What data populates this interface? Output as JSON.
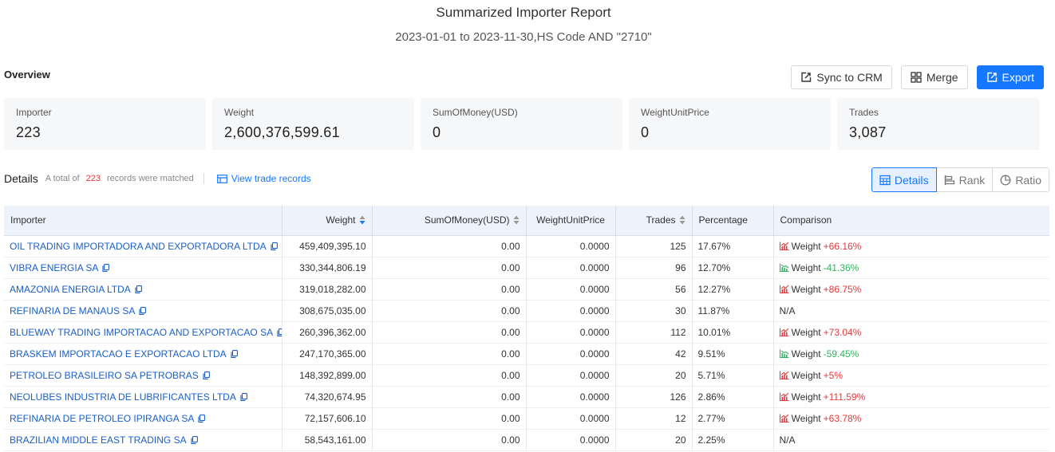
{
  "header": {
    "title": "Summarized Importer Report",
    "subtitle": "2023-01-01 to 2023-11-30,HS Code AND \"2710\""
  },
  "overview_label": "Overview",
  "toolbar": {
    "sync_label": "Sync to CRM",
    "merge_label": "Merge",
    "export_label": "Export"
  },
  "stats": [
    {
      "label": "Importer",
      "value": "223"
    },
    {
      "label": "Weight",
      "value": "2,600,376,599.61"
    },
    {
      "label": "SumOfMoney(USD)",
      "value": "0"
    },
    {
      "label": "WeightUnitPrice",
      "value": "0"
    },
    {
      "label": "Trades",
      "value": "3,087"
    }
  ],
  "details": {
    "title": "Details",
    "total_prefix": "A total of",
    "count": "223",
    "total_suffix": "records were matched",
    "view_link": "View trade records"
  },
  "view_modes": {
    "details": "Details",
    "rank": "Rank",
    "ratio": "Ratio"
  },
  "table": {
    "columns": {
      "importer": "Importer",
      "weight": "Weight",
      "money": "SumOfMoney(USD)",
      "unit_price": "WeightUnitPrice",
      "trades": "Trades",
      "percentage": "Percentage",
      "comparison": "Comparison"
    },
    "rows": [
      {
        "importer": "OIL TRADING IMPORTADORA AND EXPORTADORA LTDA",
        "weight": "459,409,395.10",
        "money": "0.00",
        "unit_price": "0.0000",
        "trades": "125",
        "percentage": "17.67%",
        "cmp_label": "Weight",
        "cmp_value": "+66.16%",
        "trend": "up"
      },
      {
        "importer": "VIBRA ENERGIA SA",
        "weight": "330,344,806.19",
        "money": "0.00",
        "unit_price": "0.0000",
        "trades": "96",
        "percentage": "12.70%",
        "cmp_label": "Weight",
        "cmp_value": "-41.36%",
        "trend": "down"
      },
      {
        "importer": "AMAZONIA ENERGIA LTDA",
        "weight": "319,018,282.00",
        "money": "0.00",
        "unit_price": "0.0000",
        "trades": "56",
        "percentage": "12.27%",
        "cmp_label": "Weight",
        "cmp_value": "+86.75%",
        "trend": "up"
      },
      {
        "importer": "REFINARIA DE MANAUS SA",
        "weight": "308,675,035.00",
        "money": "0.00",
        "unit_price": "0.0000",
        "trades": "30",
        "percentage": "11.87%",
        "cmp_label": "N/A",
        "cmp_value": "",
        "trend": "none"
      },
      {
        "importer": "BLUEWAY TRADING IMPORTACAO AND EXPORTACAO SA",
        "weight": "260,396,362.00",
        "money": "0.00",
        "unit_price": "0.0000",
        "trades": "112",
        "percentage": "10.01%",
        "cmp_label": "Weight",
        "cmp_value": "+73.04%",
        "trend": "up"
      },
      {
        "importer": "BRASKEM IMPORTACAO E EXPORTACAO LTDA",
        "weight": "247,170,365.00",
        "money": "0.00",
        "unit_price": "0.0000",
        "trades": "42",
        "percentage": "9.51%",
        "cmp_label": "Weight",
        "cmp_value": "-59.45%",
        "trend": "down"
      },
      {
        "importer": "PETROLEO BRASILEIRO SA PETROBRAS",
        "weight": "148,392,899.00",
        "money": "0.00",
        "unit_price": "0.0000",
        "trades": "20",
        "percentage": "5.71%",
        "cmp_label": "Weight",
        "cmp_value": "+5%",
        "trend": "up"
      },
      {
        "importer": "NEOLUBES INDUSTRIA DE LUBRIFICANTES LTDA",
        "weight": "74,320,674.95",
        "money": "0.00",
        "unit_price": "0.0000",
        "trades": "126",
        "percentage": "2.86%",
        "cmp_label": "Weight",
        "cmp_value": "+111.59%",
        "trend": "up"
      },
      {
        "importer": "REFINARIA DE PETROLEO IPIRANGA SA",
        "weight": "72,157,606.10",
        "money": "0.00",
        "unit_price": "0.0000",
        "trades": "12",
        "percentage": "2.77%",
        "cmp_label": "Weight",
        "cmp_value": "+63.78%",
        "trend": "up"
      },
      {
        "importer": "BRAZILIAN MIDDLE EAST TRADING SA",
        "weight": "58,543,161.00",
        "money": "0.00",
        "unit_price": "0.0000",
        "trades": "20",
        "percentage": "2.25%",
        "cmp_label": "N/A",
        "cmp_value": "",
        "trend": "none"
      }
    ]
  },
  "colors": {
    "primary": "#1677ff",
    "link": "#1a5fc7",
    "increase": "#e4393c",
    "decrease": "#2db55d",
    "header_bg": "#edf2fb"
  }
}
